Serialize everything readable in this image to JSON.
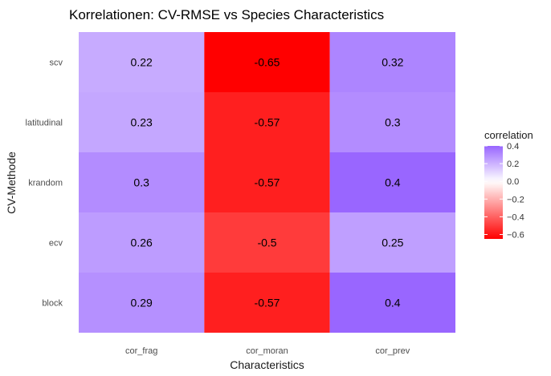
{
  "chart_data": {
    "type": "heatmap",
    "title": "Korrelationen: CV-RMSE vs Species Characteristics",
    "xlabel": "Characteristics",
    "ylabel": "CV-Methode",
    "x_categories": [
      "cor_frag",
      "cor_moran",
      "cor_prev"
    ],
    "y_categories": [
      "scv",
      "latitudinal",
      "krandom",
      "ecv",
      "block"
    ],
    "cells": [
      {
        "y": "scv",
        "x": "cor_frag",
        "value": 0.22
      },
      {
        "y": "scv",
        "x": "cor_moran",
        "value": -0.65
      },
      {
        "y": "scv",
        "x": "cor_prev",
        "value": 0.32
      },
      {
        "y": "latitudinal",
        "x": "cor_frag",
        "value": 0.23
      },
      {
        "y": "latitudinal",
        "x": "cor_moran",
        "value": -0.57
      },
      {
        "y": "latitudinal",
        "x": "cor_prev",
        "value": 0.3
      },
      {
        "y": "krandom",
        "x": "cor_frag",
        "value": 0.3
      },
      {
        "y": "krandom",
        "x": "cor_moran",
        "value": -0.57
      },
      {
        "y": "krandom",
        "x": "cor_prev",
        "value": 0.4
      },
      {
        "y": "ecv",
        "x": "cor_frag",
        "value": 0.26
      },
      {
        "y": "ecv",
        "x": "cor_moran",
        "value": -0.5
      },
      {
        "y": "ecv",
        "x": "cor_prev",
        "value": 0.25
      },
      {
        "y": "block",
        "x": "cor_frag",
        "value": 0.29
      },
      {
        "y": "block",
        "x": "cor_moran",
        "value": -0.57
      },
      {
        "y": "block",
        "x": "cor_prev",
        "value": 0.4
      }
    ],
    "legend": {
      "title": "correlation",
      "position": "right",
      "limits": [
        -0.65,
        0.4
      ],
      "midpoint": 0,
      "ticks": [
        0.4,
        0.2,
        0.0,
        -0.2,
        -0.4,
        -0.6
      ],
      "tick_labels": [
        "0.4",
        "0.2",
        "0.0",
        "−0.2",
        "−0.4",
        "−0.6"
      ],
      "colors": {
        "low": "#ff0000",
        "mid": "#ffffff",
        "high": "#9966ff"
      }
    },
    "grid": true,
    "background": "#ffffff"
  }
}
